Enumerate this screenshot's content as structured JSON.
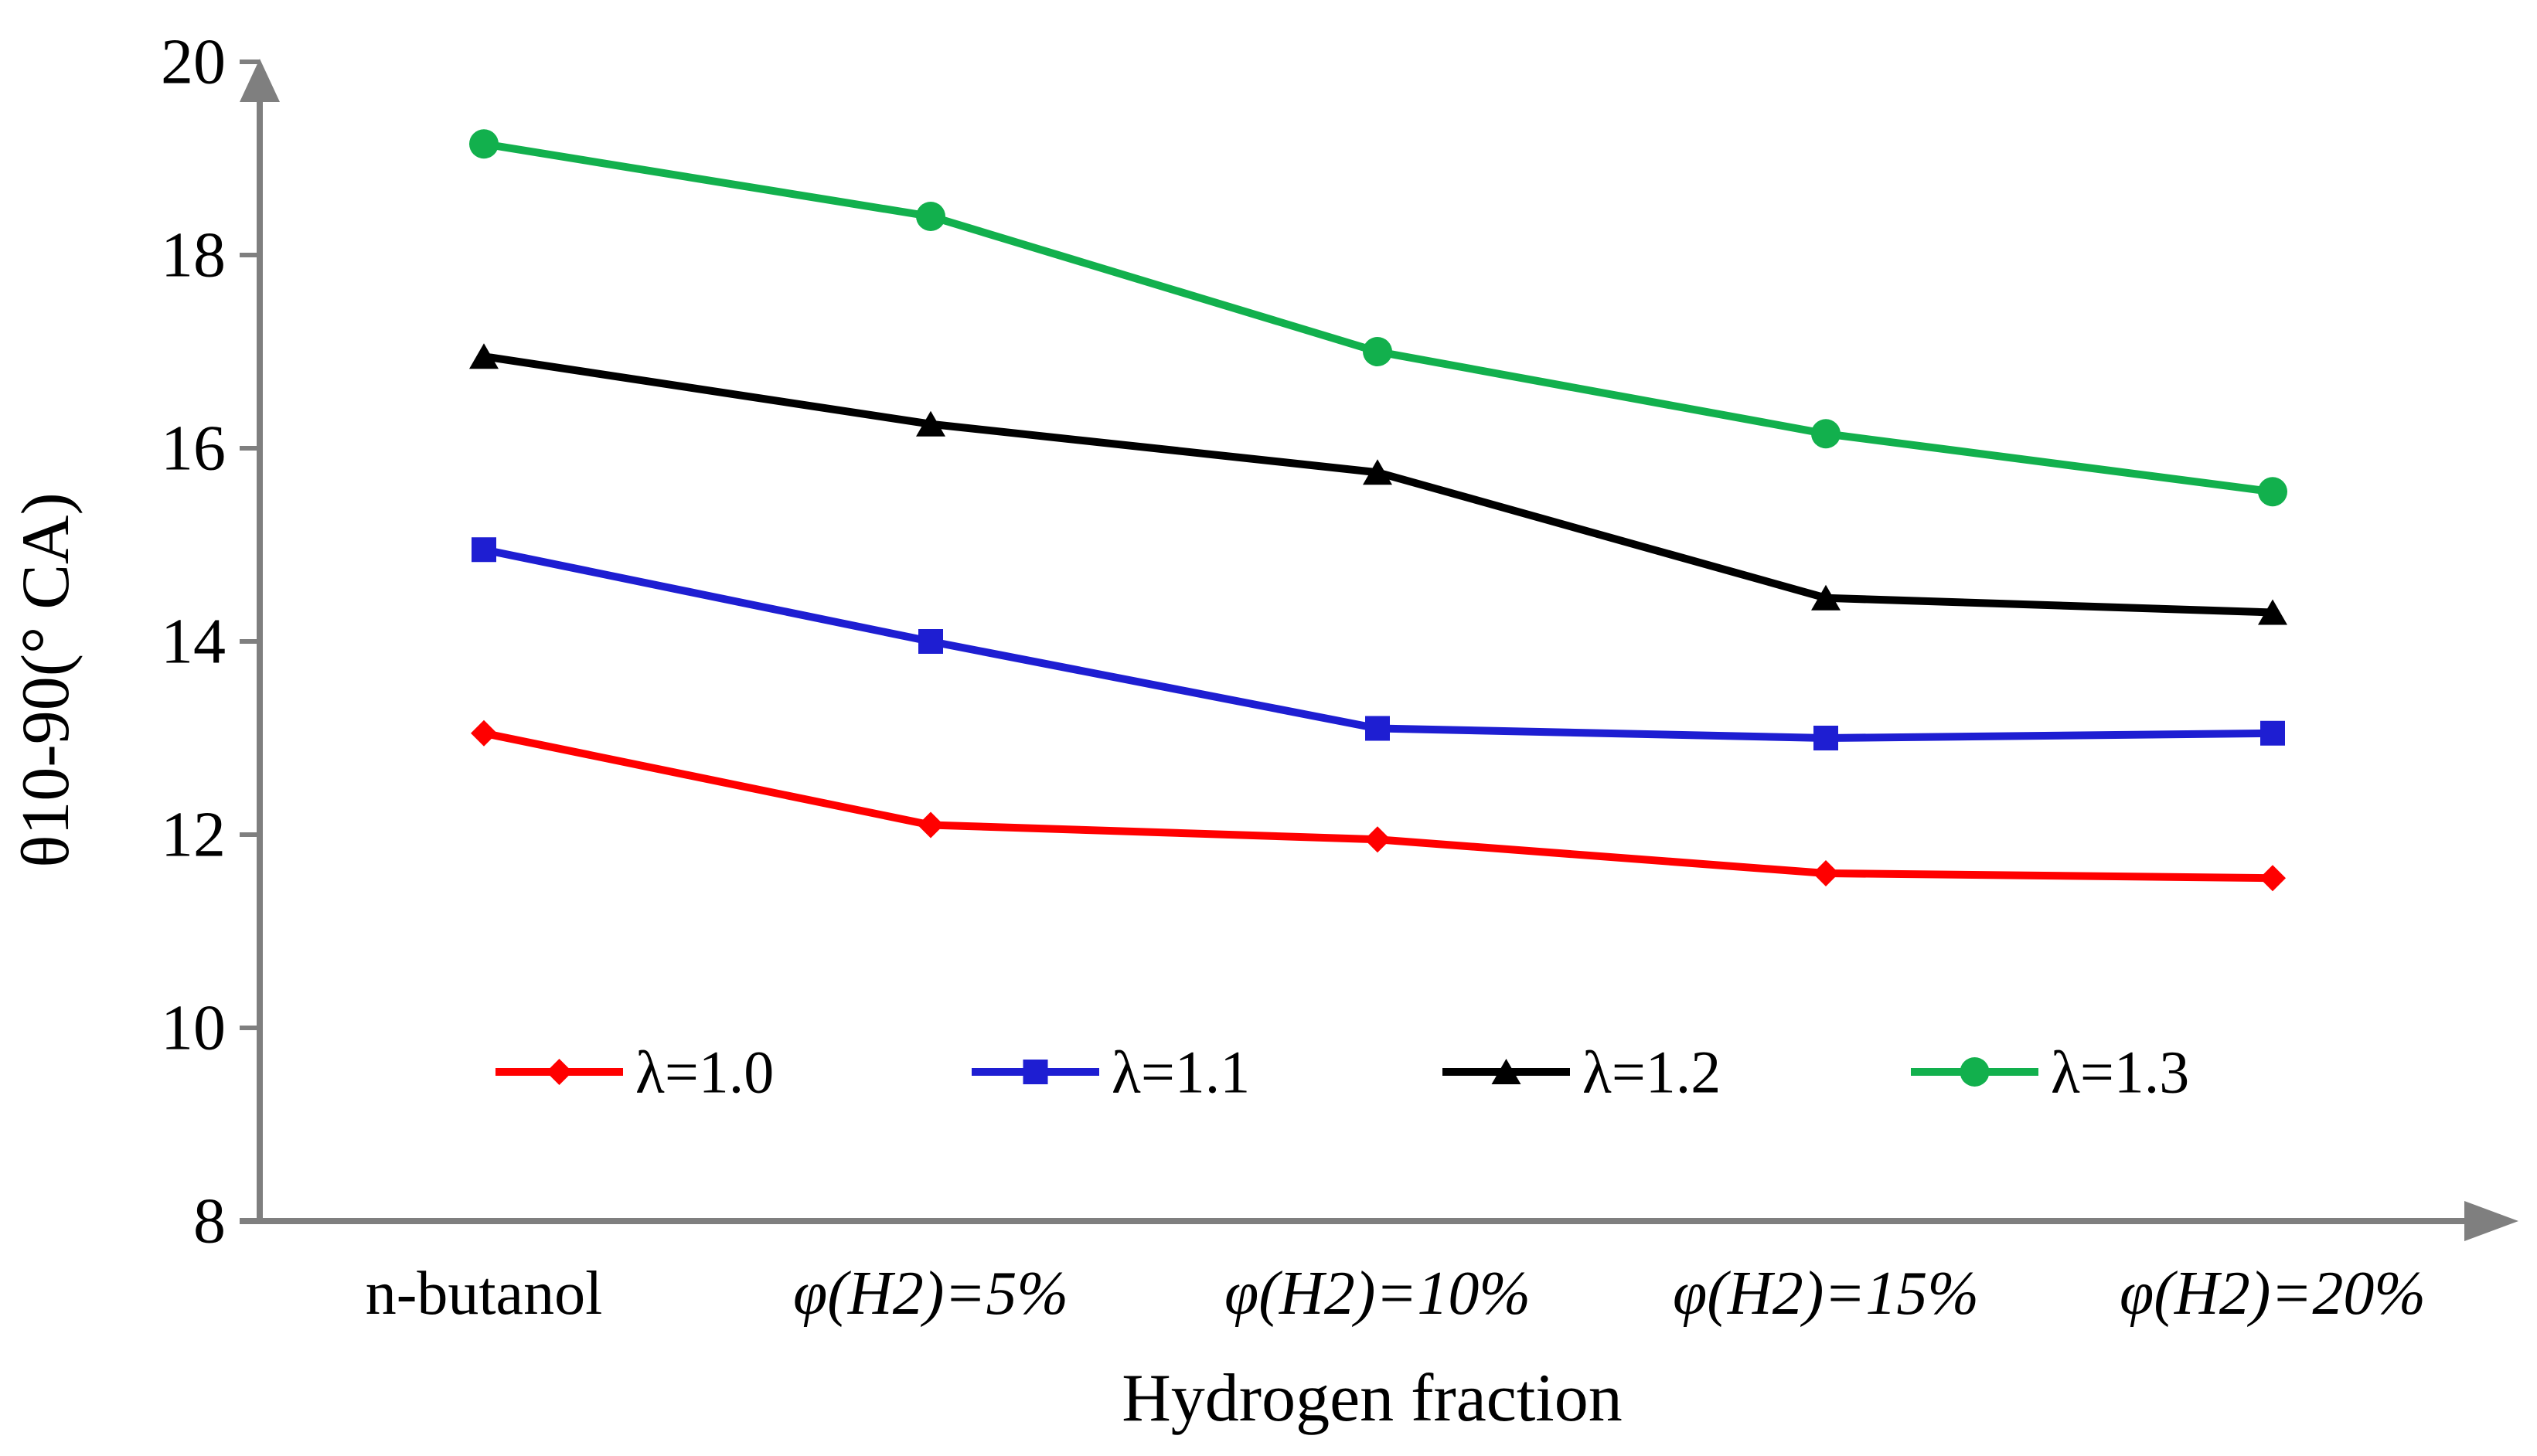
{
  "figure": {
    "background": "#FFFFFF",
    "axis_color": "#7F7F7F",
    "text_color": "#000000"
  },
  "chart_data": {
    "type": "line",
    "title": "",
    "xlabel": "Hydrogen fraction",
    "ylabel": "θ10-90(° CA)",
    "categories": [
      "n-butanol",
      "φ(H2)=5%",
      "φ(H2)=10%",
      "φ(H2)=15%",
      "φ(H2)=20%"
    ],
    "categories_italic": [
      false,
      true,
      true,
      true,
      true
    ],
    "ylim": [
      8,
      20
    ],
    "yticks": [
      8,
      10,
      12,
      14,
      16,
      18,
      20
    ],
    "grid": false,
    "legend_position": "inside-bottom",
    "series": [
      {
        "name": "λ=1.0",
        "color": "#FF0000",
        "marker": "diamond",
        "values": [
          13.05,
          12.1,
          11.95,
          11.6,
          11.55
        ]
      },
      {
        "name": "λ=1.1",
        "color": "#1E1ED2",
        "marker": "square",
        "values": [
          14.95,
          14.0,
          13.1,
          13.0,
          13.05
        ]
      },
      {
        "name": "λ=1.2",
        "color": "#000000",
        "marker": "triangle",
        "values": [
          16.95,
          16.25,
          15.75,
          14.45,
          14.3
        ]
      },
      {
        "name": "λ=1.3",
        "color": "#12B04D",
        "marker": "circle",
        "values": [
          19.15,
          18.4,
          17.0,
          16.15,
          15.55
        ]
      }
    ]
  }
}
